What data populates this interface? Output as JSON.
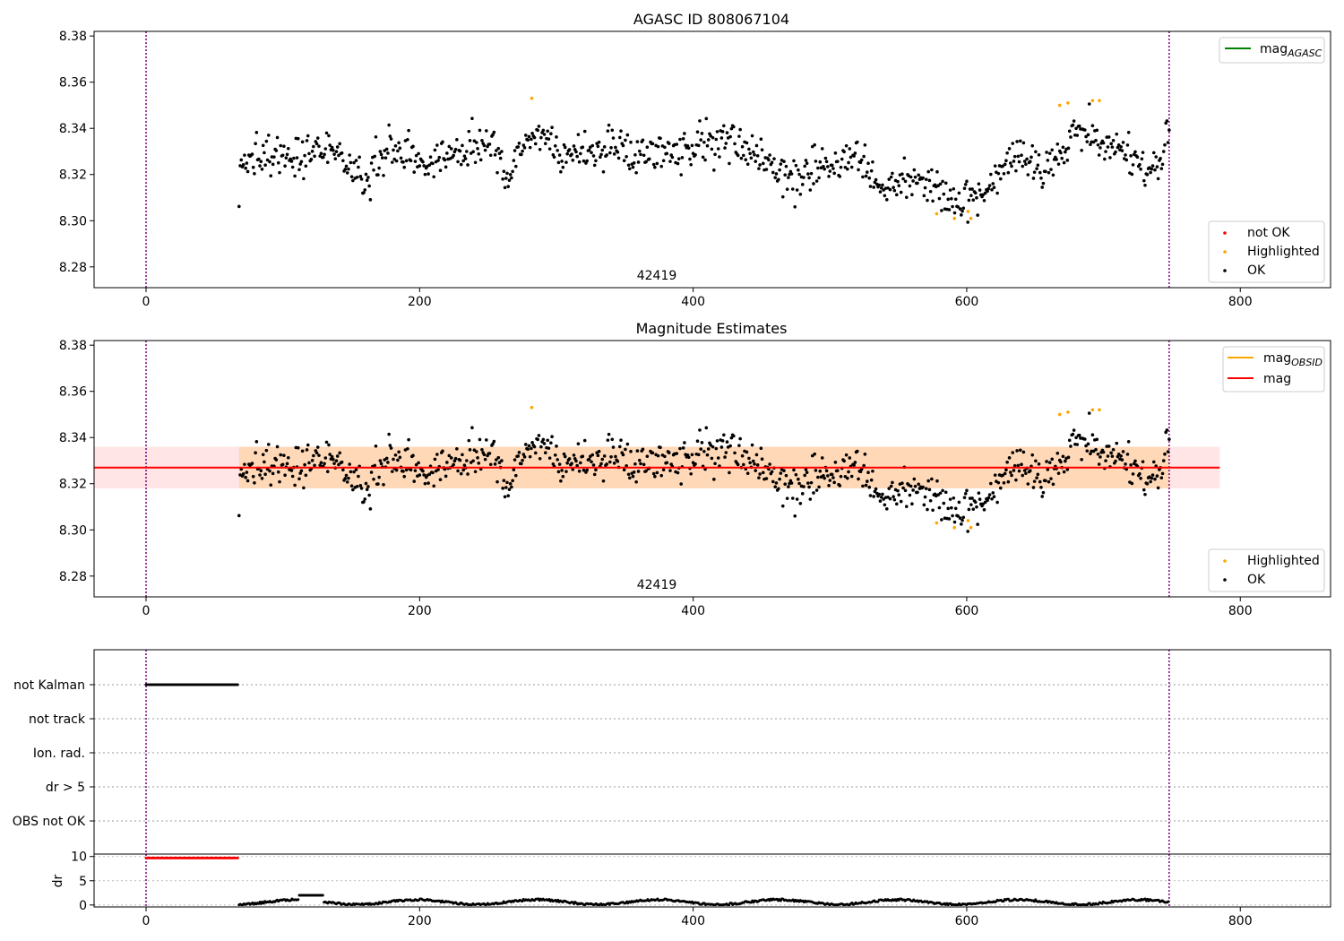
{
  "chart_data": [
    {
      "type": "scatter",
      "panel": "top",
      "title": "AGASC ID 808067104",
      "annotation": "42419",
      "xlim": [
        -38,
        866
      ],
      "ylim": [
        8.271,
        8.382
      ],
      "xticks": [
        0,
        200,
        400,
        600,
        800
      ],
      "yticks": [
        8.28,
        8.3,
        8.32,
        8.34,
        8.36,
        8.38
      ],
      "vlines_x": [
        0,
        748
      ],
      "series": [
        {
          "name": "mag_AGASC",
          "style": "line",
          "color": "#008000",
          "y": null
        },
        {
          "name": "not OK",
          "style": "points",
          "color": "#ff0000",
          "points": []
        },
        {
          "name": "Highlighted",
          "style": "points",
          "color": "#ffa500",
          "points": [
            [
              282,
              8.353
            ],
            [
              578,
              8.303
            ],
            [
              591,
              8.301
            ],
            [
              601,
              8.304
            ],
            [
              603,
              8.301
            ],
            [
              668,
              8.35
            ],
            [
              674,
              8.351
            ],
            [
              692,
              8.352
            ],
            [
              697,
              8.352
            ]
          ]
        },
        {
          "name": "OK",
          "style": "points",
          "color": "#000000",
          "baseline": 8.327
        }
      ],
      "legend_main": [
        {
          "label_main": "mag",
          "label_sub": "AGASC",
          "color": "#008000"
        }
      ],
      "legend_points": [
        {
          "label": "not OK",
          "color": "#ff0000"
        },
        {
          "label": "Highlighted",
          "color": "#ffa500"
        },
        {
          "label": "OK",
          "color": "#000000"
        }
      ]
    },
    {
      "type": "scatter",
      "panel": "middle",
      "title": "Magnitude Estimates",
      "annotation": "42419",
      "xlim": [
        -38,
        866
      ],
      "ylim": [
        8.271,
        8.382
      ],
      "xticks": [
        0,
        200,
        400,
        600,
        800
      ],
      "yticks": [
        8.28,
        8.3,
        8.32,
        8.34,
        8.36,
        8.38
      ],
      "vlines_x": [
        0,
        748
      ],
      "mag_line": {
        "y": 8.327,
        "x_range": [
          -38,
          785
        ],
        "band": [
          8.318,
          8.336
        ],
        "color": "#ff0000"
      },
      "obsid_band": {
        "x_range": [
          68,
          748
        ],
        "band": [
          8.318,
          8.336
        ],
        "color": "#ffa500"
      },
      "series": [
        {
          "name": "mag_OBSID",
          "style": "line",
          "color": "#ffa500"
        },
        {
          "name": "mag",
          "style": "line",
          "color": "#ff0000",
          "y": 8.327
        },
        {
          "name": "Highlighted",
          "style": "points",
          "color": "#ffa500",
          "points": [
            [
              282,
              8.353
            ],
            [
              578,
              8.303
            ],
            [
              591,
              8.301
            ],
            [
              601,
              8.304
            ],
            [
              603,
              8.301
            ],
            [
              668,
              8.35
            ],
            [
              674,
              8.351
            ],
            [
              692,
              8.352
            ],
            [
              697,
              8.352
            ]
          ]
        },
        {
          "name": "OK",
          "style": "points",
          "color": "#000000"
        }
      ],
      "legend_lines": [
        {
          "label_main": "mag",
          "label_sub": "OBSID",
          "color": "#ffa500"
        },
        {
          "label_main": "mag",
          "label_sub": "",
          "color": "#ff0000"
        }
      ],
      "legend_points": [
        {
          "label": "Highlighted",
          "color": "#ffa500"
        },
        {
          "label": "OK",
          "color": "#000000"
        }
      ]
    },
    {
      "type": "scatter",
      "panel": "flags",
      "xlim": [
        -38,
        866
      ],
      "categories": [
        "not Kalman",
        "not track",
        "Ion. rad.",
        "dr > 5",
        "OBS not OK"
      ],
      "flag_points": {
        "category": "not Kalman",
        "x_range": [
          0,
          67
        ],
        "step": 1,
        "color": "#000000"
      }
    },
    {
      "type": "scatter",
      "panel": "dr",
      "ylabel": "dr",
      "xlim": [
        -38,
        866
      ],
      "ylim": [
        -0.4,
        10.5
      ],
      "xticks": [
        0,
        200,
        400,
        600,
        800
      ],
      "yticks": [
        0,
        5,
        10
      ],
      "red_points": {
        "x_range": [
          0,
          67
        ],
        "y": 9.7,
        "color": "#ff0000"
      },
      "black_points": {
        "x_range": [
          68,
          748
        ],
        "color": "#000000"
      }
    }
  ]
}
